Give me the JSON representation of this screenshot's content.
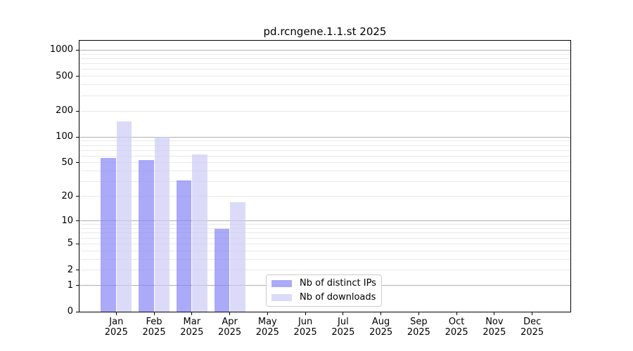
{
  "chart_data": {
    "type": "bar",
    "title": "pd.rcngene.1.1.st 2025",
    "categories": [
      "Jan",
      "Feb",
      "Mar",
      "Apr",
      "May",
      "Jun",
      "Jul",
      "Aug",
      "Sep",
      "Oct",
      "Nov",
      "Dec"
    ],
    "year_label": "2025",
    "series": [
      {
        "name": "Nb of distinct IPs",
        "color": "rgba(134,134,245,0.7)",
        "values": [
          57,
          54,
          31,
          8,
          0,
          0,
          0,
          0,
          0,
          0,
          0,
          0
        ]
      },
      {
        "name": "Nb of downloads",
        "color": "rgba(204,204,247,0.7)",
        "values": [
          150,
          100,
          63,
          17,
          0,
          0,
          0,
          0,
          0,
          0,
          0,
          0
        ]
      }
    ],
    "xlabel": "",
    "ylabel": "",
    "y_scale": "pseudo-log: position proportional to log10(value+1)",
    "ylim": [
      0,
      1284
    ],
    "y_tick_values": [
      1000,
      500,
      200,
      100,
      50,
      20,
      10,
      5,
      2,
      1,
      0
    ],
    "y_tick_labels": [
      "1000",
      "500",
      "200",
      "100",
      "50",
      "20",
      "10",
      "5",
      "2",
      "1",
      "0"
    ],
    "gridlines": {
      "major": [
        1,
        10,
        100,
        1000
      ],
      "minor": [
        2,
        3,
        4,
        5,
        6,
        7,
        8,
        9,
        20,
        30,
        40,
        50,
        60,
        70,
        80,
        90,
        200,
        300,
        400,
        500,
        600,
        700,
        800,
        900
      ]
    },
    "grid_on": true,
    "legend_position": "lower center",
    "colors": {
      "major_grid": "#b0b0b0",
      "minor_grid": "#e9e9e9",
      "axis": "#000000",
      "legend_border": "#cccccc",
      "background": "#ffffff",
      "text": "#000000"
    }
  }
}
